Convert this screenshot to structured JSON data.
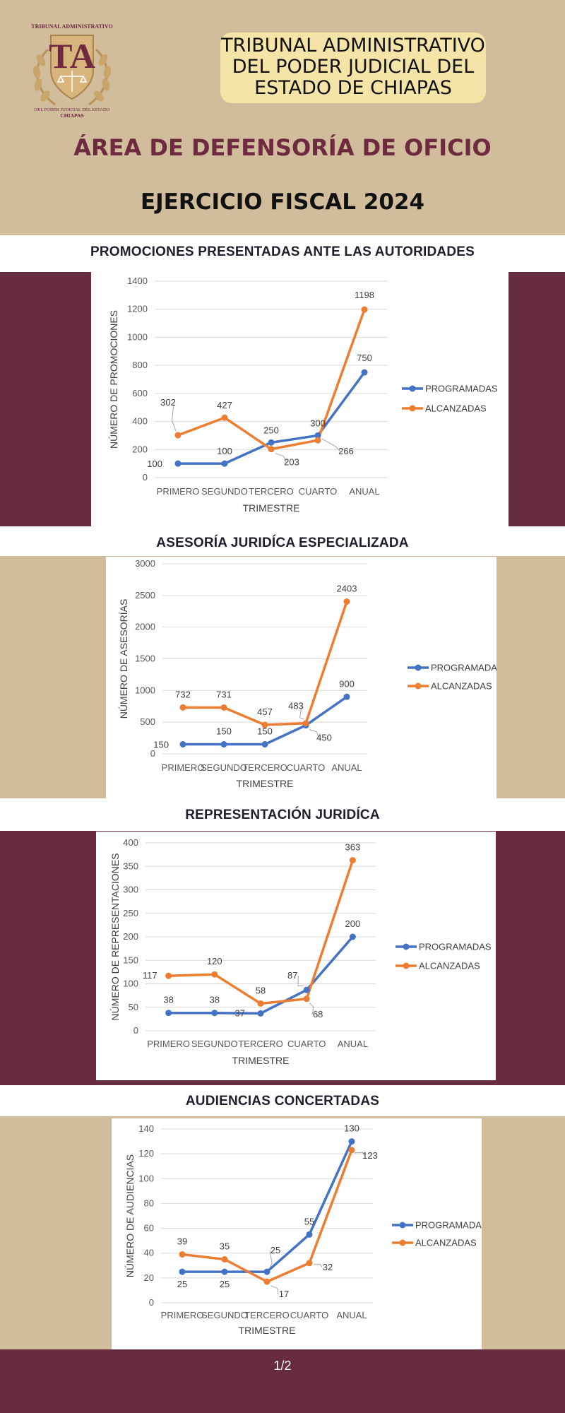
{
  "header": {
    "title": "TRIBUNAL ADMINISTRATIVO DEL PODER JUDICIAL DEL ESTADO DE CHIAPAS",
    "title_lines": [
      "TRIBUNAL ADMINISTRATIVO",
      "DEL PODER JUDICIAL DEL",
      "ESTADO DE CHIAPAS"
    ],
    "area": "ÁREA DE DEFENSORÍA DE OFICIO",
    "fiscal_year": "EJERCICIO FISCAL 2024"
  },
  "logo": {
    "top_text": "TRIBUNAL ADMINISTRATIVO",
    "monogram": "TA",
    "bottom_text_1": "DEL PODER JUDICIAL DEL ESTADO",
    "bottom_text_2": "CHIAPAS"
  },
  "colors": {
    "programadas": "#4472c4",
    "alcanzadas": "#ed7d31",
    "maroon": "#682c40",
    "tan": "#d1bc9c"
  },
  "footer": {
    "page": "1/2"
  },
  "sections": [
    {
      "title": "PROMOCIONES PRESENTADAS ANTE LAS AUTORIDADES"
    },
    {
      "title": "ASESORÍA JURIDÍCA ESPECIALIZADA"
    },
    {
      "title": "REPRESENTACIÓN JURIDÍCA"
    },
    {
      "title": "AUDIENCIAS CONCERTADAS"
    }
  ],
  "chart_data": [
    {
      "type": "line",
      "title": "PROMOCIONES PRESENTADAS ANTE LAS AUTORIDADES",
      "categories": [
        "PRIMERO",
        "SEGUNDO",
        "TERCERO",
        "CUARTO",
        "ANUAL"
      ],
      "series": [
        {
          "name": "PROGRAMADAS",
          "values": [
            100,
            100,
            250,
            300,
            750
          ]
        },
        {
          "name": "ALCANZADAS",
          "values": [
            302,
            427,
            203,
            266,
            1198
          ]
        }
      ],
      "xlabel": "TRIMESTRE",
      "ylabel": "NÚMERO DE PROMOCIONES",
      "ylim": [
        0,
        1400
      ],
      "yticks": [
        0,
        200,
        400,
        600,
        800,
        1000,
        1200,
        1400
      ],
      "legend": "right",
      "grid": true
    },
    {
      "type": "line",
      "title": "ASESORÍA JURIDÍCA ESPECIALIZADA",
      "categories": [
        "PRIMERO",
        "SEGUNDO",
        "TERCERO",
        "CUARTO",
        "ANUAL"
      ],
      "series": [
        {
          "name": "PROGRAMADAS",
          "values": [
            150,
            150,
            150,
            450,
            900
          ]
        },
        {
          "name": "ALCANZADAS",
          "values": [
            732,
            731,
            457,
            483,
            2403
          ]
        }
      ],
      "xlabel": "TRIMESTRE",
      "ylabel": "NÚMERO DE ASESORÍAS",
      "ylim": [
        0,
        3000
      ],
      "yticks": [
        0,
        500,
        1000,
        1500,
        2000,
        2500,
        3000
      ],
      "legend": "right",
      "grid": true
    },
    {
      "type": "line",
      "title": "REPRESENTACIÓN JURIDÍCA",
      "categories": [
        "PRIMERO",
        "SEGUNDO",
        "TERCERO",
        "CUARTO",
        "ANUAL"
      ],
      "series": [
        {
          "name": "PROGRAMADAS",
          "values": [
            38,
            38,
            37,
            87,
            200
          ]
        },
        {
          "name": "ALCANZADAS",
          "values": [
            117,
            120,
            58,
            68,
            363
          ]
        }
      ],
      "xlabel": "TRIMESTRE",
      "ylabel": "NÚMERO DE REPRESENTACIONES",
      "ylim": [
        0,
        400
      ],
      "yticks": [
        0,
        50,
        100,
        150,
        200,
        250,
        300,
        350,
        400
      ],
      "legend": "right",
      "grid": true
    },
    {
      "type": "line",
      "title": "AUDIENCIAS CONCERTADAS",
      "categories": [
        "PRIMERO",
        "SEGUNDO",
        "TERCERO",
        "CUARTO",
        "ANUAL"
      ],
      "series": [
        {
          "name": "PROGRAMADAS",
          "values": [
            25,
            25,
            25,
            55,
            130
          ]
        },
        {
          "name": "ALCANZADAS",
          "values": [
            39,
            35,
            17,
            32,
            123
          ]
        }
      ],
      "xlabel": "TRIMESTRE",
      "ylabel": "NÚMERO DE AUDIENCIAS",
      "ylim": [
        0,
        140
      ],
      "yticks": [
        0,
        20,
        40,
        60,
        80,
        100,
        120,
        140
      ],
      "legend": "right",
      "grid": true
    }
  ]
}
